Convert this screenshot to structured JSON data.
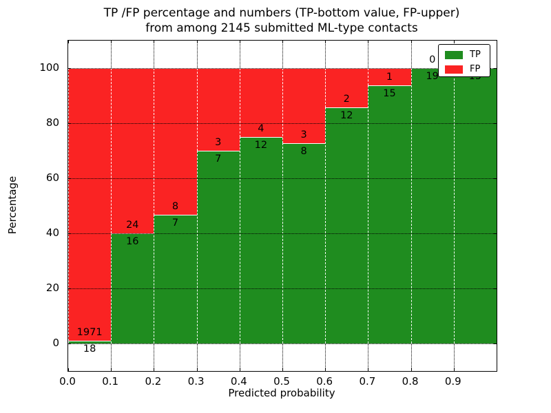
{
  "title": {
    "line1": "TP /FP percentage and numbers (TP-bottom value, FP-upper)",
    "line2": "from among 2145 submitted ML-type contacts"
  },
  "axes": {
    "xlabel": "Predicted probability",
    "ylabel": "Percentage",
    "x_tick_labels": [
      "0.0",
      "0.1",
      "0.2",
      "0.3",
      "0.4",
      "0.5",
      "0.6",
      "0.7",
      "0.8",
      "0.9"
    ],
    "y_tick_labels": [
      "0",
      "20",
      "40",
      "60",
      "80",
      "100"
    ],
    "y_tick_values": [
      0,
      20,
      40,
      60,
      80,
      100
    ]
  },
  "legend": {
    "items": [
      {
        "label": "TP",
        "color": "#1f8c1f"
      },
      {
        "label": "FP",
        "color": "#fa2323"
      }
    ]
  },
  "colors": {
    "tp": "#1f8c1f",
    "fp": "#fa2323",
    "frame": "#000000",
    "background": "#ffffff"
  },
  "chart_data": {
    "type": "bar",
    "stacked": true,
    "title": "TP /FP percentage and numbers (TP-bottom value, FP-upper) from among 2145 submitted ML-type contacts",
    "xlabel": "Predicted probability",
    "ylabel": "Percentage",
    "total_contacts": 2145,
    "bins": [
      "0.0-0.1",
      "0.1-0.2",
      "0.2-0.3",
      "0.3-0.4",
      "0.4-0.5",
      "0.5-0.6",
      "0.6-0.7",
      "0.7-0.8",
      "0.8-0.9",
      "0.9-1.0"
    ],
    "series": [
      {
        "name": "TP",
        "color": "#1f8c1f",
        "values": [
          18,
          16,
          7,
          7,
          12,
          8,
          12,
          15,
          19,
          15
        ]
      },
      {
        "name": "FP",
        "color": "#fa2323",
        "values": [
          1971,
          24,
          8,
          3,
          4,
          3,
          2,
          1,
          0,
          0
        ]
      }
    ],
    "tp_percent": [
      0.9,
      40.0,
      46.7,
      70.0,
      75.0,
      72.7,
      85.7,
      93.8,
      100.0,
      100.0
    ],
    "tp_labels": [
      "18",
      "16",
      "7",
      "7",
      "12",
      "8",
      "12",
      "15",
      "19",
      "15"
    ],
    "fp_labels": [
      "1971",
      "24",
      "8",
      "3",
      "4",
      "3",
      "2",
      "1",
      "0",
      ""
    ],
    "xlim": [
      0.0,
      1.0
    ],
    "ylim": [
      -10,
      110
    ],
    "grid": true,
    "grid_style": "dotted",
    "legend_position": "upper right"
  }
}
